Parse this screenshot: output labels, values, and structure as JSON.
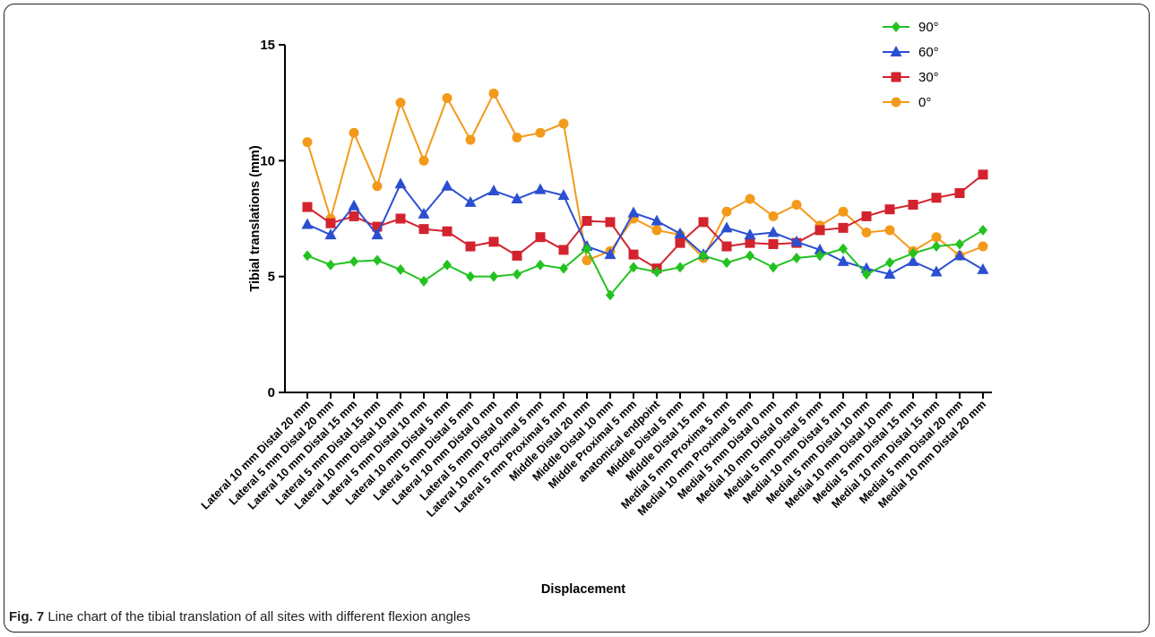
{
  "caption": {
    "label": "Fig. 7",
    "text": "Line chart of the tibial translation of all sites with different flexion angles"
  },
  "chart_data": {
    "type": "line",
    "title": "",
    "xlabel": "Displacement",
    "ylabel": "Tibial translations (mm)",
    "ylim": [
      0,
      15
    ],
    "yticks": [
      0,
      5,
      10,
      15
    ],
    "grid": false,
    "legend_position": "top-right",
    "categories": [
      "Lateral 10 mm Distal 20 mm",
      "Lateral 5 mm Distal 20 mm",
      "Lateral 10 mm Distal 15 mm",
      "Lateral 5 mm Distal 15 mm",
      "Lateral 10 mm Distal 10 mm",
      "Lateral 5 mm Distal 10 mm",
      "Lateral 10 mm Distal 5 mm",
      "Lateral 5 mm Distal 5 mm",
      "Lateral 10 mm Distal 0 mm",
      "Lateral 5 mm Distal 0 mm",
      "Lateral 10 mm Proximal 5 mm",
      "Lateral 5 mm Proximal 5 mm",
      "Middle Distal 20 mm",
      "Middle Distal 10 mm",
      "Middle Proximal 5 mm",
      "anatomical endpoint",
      "Middle Distal 5 mm",
      "Middle Distal 15 mm",
      "Medial 5 mm Proxima 5 mm",
      "Medial 10 mm Proximal 5 mm",
      "Medial 5 mm Distal 0 mm",
      "Medial 10 mm Distal 0 mm",
      "Medial 5 mm Distal 5 mm",
      "Medial 10 mm Distal 5 mm",
      "Medial 5 mm Distal 10 mm",
      "Medial 10 mm Distal 10 mm",
      "Medial 5 mm Distal 15 mm",
      "Medial 10 mm Distal 15 mm",
      "Medial 5 mm Distal 20 mm",
      "Medial 10 mm Distal 20 mm"
    ],
    "series": [
      {
        "name": "90°",
        "color": "#22c21f",
        "marker": "diamond",
        "values": [
          5.9,
          5.5,
          5.65,
          5.7,
          5.3,
          4.8,
          5.5,
          5.0,
          5.0,
          5.1,
          5.5,
          5.35,
          6.2,
          4.2,
          5.4,
          5.2,
          5.4,
          5.9,
          5.6,
          5.9,
          5.4,
          5.8,
          5.9,
          6.2,
          5.1,
          5.6,
          6.0,
          6.3,
          6.4,
          7.0
        ]
      },
      {
        "name": "60°",
        "color": "#2b4fd1",
        "marker": "triangle",
        "values": [
          7.25,
          6.8,
          8.05,
          6.8,
          9.0,
          7.7,
          8.9,
          8.2,
          8.7,
          8.35,
          8.75,
          8.5,
          6.3,
          5.95,
          7.75,
          7.4,
          6.85,
          5.95,
          7.1,
          6.8,
          6.9,
          6.5,
          6.15,
          5.65,
          5.35,
          5.1,
          5.65,
          5.2,
          5.9,
          5.3
        ]
      },
      {
        "name": "30°",
        "color": "#d2232e",
        "marker": "square",
        "values": [
          8.0,
          7.3,
          7.6,
          7.15,
          7.5,
          7.05,
          6.95,
          6.3,
          6.5,
          5.9,
          6.7,
          6.15,
          7.4,
          7.35,
          5.95,
          5.35,
          6.45,
          7.35,
          6.3,
          6.45,
          6.4,
          6.45,
          7.0,
          7.1,
          7.6,
          7.9,
          8.1,
          8.4,
          8.6,
          9.4
        ]
      },
      {
        "name": "0°",
        "color": "#f39a1b",
        "marker": "circle",
        "values": [
          10.8,
          7.5,
          11.2,
          8.9,
          12.5,
          10.0,
          12.7,
          10.9,
          12.9,
          11.0,
          11.2,
          11.6,
          5.7,
          6.1,
          7.5,
          7.0,
          6.8,
          5.8,
          7.8,
          8.35,
          7.6,
          8.1,
          7.2,
          7.8,
          6.9,
          7.0,
          6.1,
          6.7,
          5.9,
          6.3
        ]
      }
    ]
  }
}
